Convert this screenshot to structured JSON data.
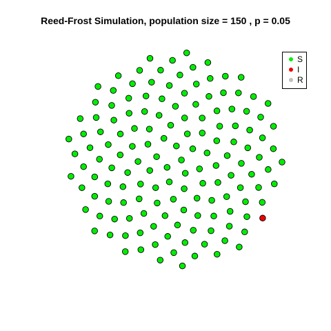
{
  "chart_data": {
    "type": "scatter",
    "title": "Reed-Frost Simulation, population size = 150 , p = 0.05",
    "population_size": 150,
    "p": 0.05,
    "layout": "sunflower",
    "status_counts": {
      "S": 149,
      "I": 1,
      "R": 0
    },
    "infected_index": 139,
    "legend": {
      "position": "top-right",
      "entries": [
        {
          "label": "S",
          "color": "#00ee00"
        },
        {
          "label": "I",
          "color": "#ee0000"
        },
        {
          "label": "R",
          "color": "#bebebe"
        }
      ]
    },
    "colors": {
      "S": "#00ee00",
      "I": "#ee0000",
      "R": "#bebebe",
      "outline": "#000000"
    },
    "axes": false,
    "grid": false
  }
}
